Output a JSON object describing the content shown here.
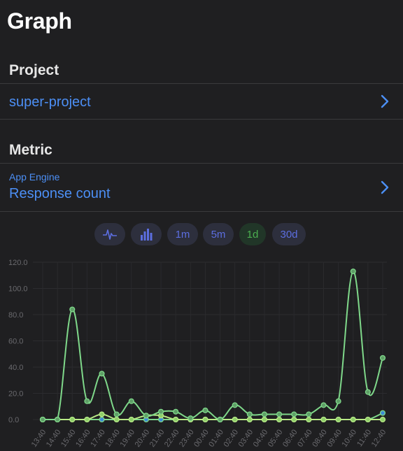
{
  "page_title": "Graph",
  "project": {
    "header": "Project",
    "value": "super-project",
    "chevron_icon": "chevron-right-icon"
  },
  "metric": {
    "header": "Metric",
    "category": "App Engine",
    "value": "Response count",
    "chevron_icon": "chevron-right-icon"
  },
  "chart_controls": {
    "line_icon": "pulse-line-icon",
    "bar_icon": "bar-chart-icon",
    "ranges": [
      "1m",
      "5m",
      "1d",
      "30d"
    ],
    "selected_range": "1d"
  },
  "colors": {
    "background": "#1f1f21",
    "link": "#4c8ff5",
    "series_main": "#7fd88a",
    "series_secondary": "#3d8bd6",
    "active_chip": "#4caf50",
    "chip_text": "#5c6ee0"
  },
  "chart_data": {
    "type": "line",
    "x": [
      "13:40",
      "14:40",
      "15:40",
      "16:40",
      "17:40",
      "18:40",
      "19:40",
      "20:40",
      "21:40",
      "22:40",
      "23:40",
      "00:40",
      "01:40",
      "02:40",
      "03:40",
      "04:40",
      "05:40",
      "06:40",
      "07:40",
      "08:40",
      "09:40",
      "10:40",
      "11:40",
      "12:40"
    ],
    "ylim": [
      0,
      120
    ],
    "yticks": [
      "0.0",
      "20.0",
      "40.0",
      "60.0",
      "80.0",
      "100.0",
      "120.0"
    ],
    "grid": true,
    "series": [
      {
        "values": [
          0,
          0,
          84,
          14,
          35,
          4,
          14,
          3,
          6,
          6,
          1,
          7,
          0,
          11,
          4,
          4,
          4,
          4,
          4,
          11,
          14,
          113,
          21,
          47
        ]
      },
      {
        "values": [
          0,
          0,
          0,
          0,
          4,
          0,
          0,
          3,
          3,
          0,
          0,
          0,
          0,
          0,
          0,
          0,
          0,
          0,
          0,
          0,
          0,
          0,
          0,
          0
        ]
      },
      {
        "values": [
          0,
          0,
          0,
          0,
          0,
          0,
          0,
          0,
          0,
          0,
          0,
          0,
          0,
          0,
          0,
          0,
          0,
          0,
          0,
          0,
          0,
          0,
          0,
          5
        ]
      }
    ]
  }
}
